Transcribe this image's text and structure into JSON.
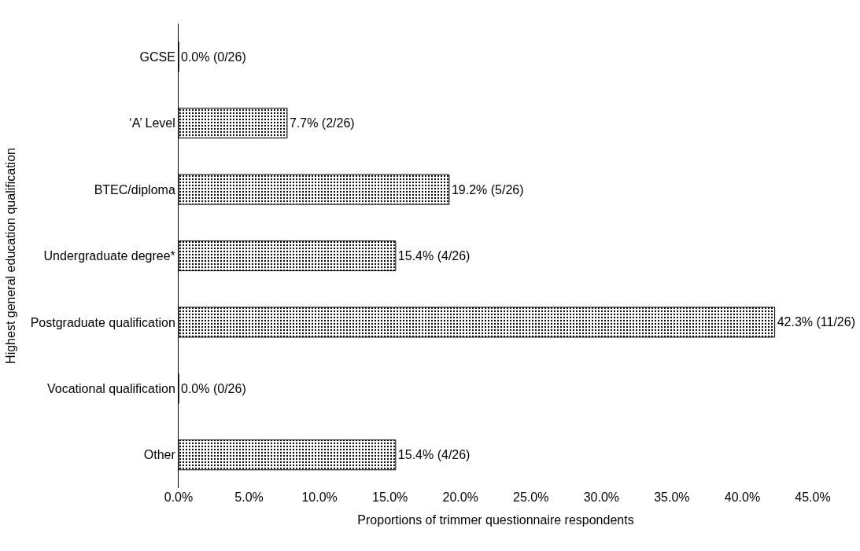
{
  "chart_data": {
    "type": "bar",
    "orientation": "horizontal",
    "ylabel": "Highest general education qualification",
    "xlabel": "Proportions of trimmer questionnaire respondents",
    "categories": [
      "GCSE",
      "‘A’ Level",
      "BTEC/diploma",
      "Undergraduate degree*",
      "Postgraduate qualification",
      "Vocational qualification",
      "Other"
    ],
    "values": [
      0.0,
      7.7,
      19.2,
      15.4,
      42.3,
      0.0,
      15.4
    ],
    "value_labels": [
      "0.0% (0/26)",
      "7.7% (2/26)",
      "19.2% (5/26)",
      "15.4% (4/26)",
      "42.3% (11/26)",
      "0.0% (0/26)",
      "15.4% (4/26)"
    ],
    "color": "#000000",
    "xlim": [
      0,
      45
    ],
    "xticks": [
      {
        "value": 0,
        "label": "0.0%"
      },
      {
        "value": 5,
        "label": "5.0%"
      },
      {
        "value": 10,
        "label": "10.0%"
      },
      {
        "value": 15,
        "label": "15.0%"
      },
      {
        "value": 20,
        "label": "20.0%"
      },
      {
        "value": 25,
        "label": "25.0%"
      },
      {
        "value": 30,
        "label": "30.0%"
      },
      {
        "value": 35,
        "label": "35.0%"
      },
      {
        "value": 40,
        "label": "40.0%"
      },
      {
        "value": 45,
        "label": "45.0%"
      }
    ]
  }
}
